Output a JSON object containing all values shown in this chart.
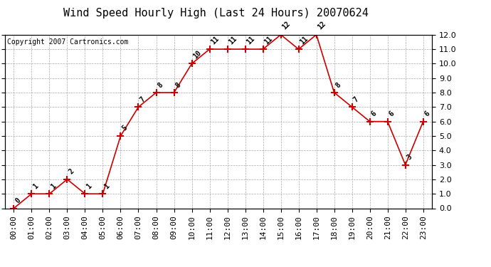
{
  "title": "Wind Speed Hourly High (Last 24 Hours) 20070624",
  "copyright_text": "Copyright 2007 Cartronics.com",
  "hours": [
    "00:00",
    "01:00",
    "02:00",
    "03:00",
    "04:00",
    "05:00",
    "06:00",
    "07:00",
    "08:00",
    "09:00",
    "10:00",
    "11:00",
    "12:00",
    "13:00",
    "14:00",
    "15:00",
    "16:00",
    "17:00",
    "18:00",
    "19:00",
    "20:00",
    "21:00",
    "22:00",
    "23:00"
  ],
  "values": [
    0,
    1,
    1,
    2,
    1,
    1,
    5,
    7,
    8,
    8,
    10,
    11,
    11,
    11,
    11,
    12,
    11,
    12,
    8,
    7,
    6,
    6,
    3,
    6
  ],
  "ylim": [
    0.0,
    12.0
  ],
  "yticks": [
    0.0,
    1.0,
    2.0,
    3.0,
    4.0,
    5.0,
    6.0,
    7.0,
    8.0,
    9.0,
    10.0,
    11.0,
    12.0
  ],
  "line_color": "#cc0000",
  "marker": "+",
  "marker_size": 7,
  "marker_color": "#cc0000",
  "bg_color": "#ffffff",
  "plot_bg_color": "#ffffff",
  "grid_color": "#aaaaaa",
  "grid_style": "--",
  "title_fontsize": 11,
  "label_fontsize": 7,
  "tick_fontsize": 8,
  "copyright_fontsize": 7
}
